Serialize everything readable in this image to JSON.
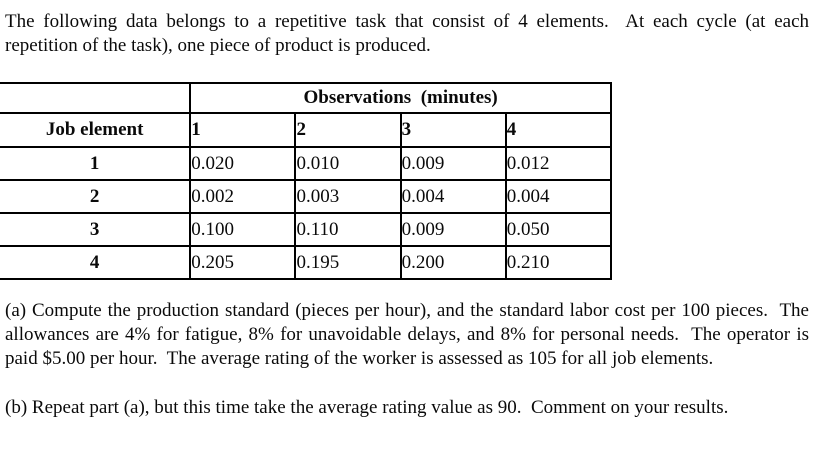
{
  "intro": "The following data belongs to a repetitive task that consist of 4 elements.  At each cycle (at each repetition of the task), one piece of product is produced.",
  "table": {
    "observations_header": "Observations  (minutes)",
    "job_element_header": "Job element",
    "observation_columns": [
      "1",
      "2",
      "3",
      "4"
    ],
    "rows": [
      {
        "element": "1",
        "values": [
          "0.020",
          "0.010",
          "0.009",
          "0.012"
        ]
      },
      {
        "element": "2",
        "values": [
          "0.002",
          "0.003",
          "0.004",
          "0.004"
        ]
      },
      {
        "element": "3",
        "values": [
          "0.100",
          "0.110",
          "0.009",
          "0.050"
        ]
      },
      {
        "element": "4",
        "values": [
          "0.205",
          "0.195",
          "0.200",
          "0.210"
        ]
      }
    ]
  },
  "part_a": "(a) Compute the production standard (pieces per hour), and the standard labor cost per 100 pieces.  The allowances are 4% for fatigue, 8% for unavoidable delays, and 8% for personal needs.  The operator is paid $5.00 per hour.  The average rating of the worker is assessed as 105 for all job elements.",
  "part_b": "(b) Repeat part (a), but this time take the average rating value as 90.  Comment on your results."
}
